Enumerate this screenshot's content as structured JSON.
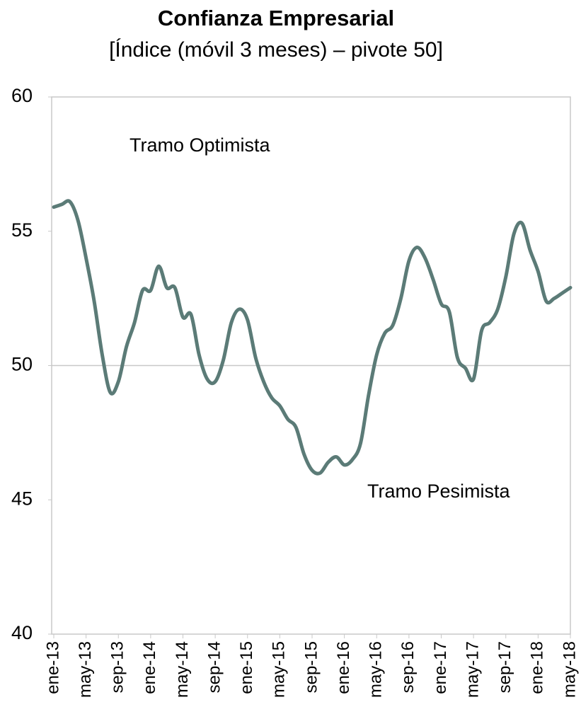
{
  "chart_data": {
    "type": "line",
    "title": "Confianza Empresarial",
    "subtitle": "[Índice (móvil 3 meses) – pivote 50]",
    "categories": [
      "ene-13",
      null,
      null,
      null,
      "may-13",
      null,
      null,
      null,
      "sep-13",
      null,
      null,
      null,
      "ene-14",
      null,
      null,
      null,
      "may-14",
      null,
      null,
      null,
      "sep-14",
      null,
      null,
      null,
      "ene-15",
      null,
      null,
      null,
      "may-15",
      null,
      null,
      null,
      "sep-15",
      null,
      null,
      null,
      "ene-16",
      null,
      null,
      null,
      "may-16",
      null,
      null,
      null,
      "sep-16",
      null,
      null,
      null,
      "ene-17",
      null,
      null,
      null,
      "may-17",
      null,
      null,
      null,
      "sep-17",
      null,
      null,
      null,
      "ene-18",
      null,
      null,
      null,
      "may-18"
    ],
    "series": [
      {
        "name": "Confianza Empresarial",
        "color": "#5b7b77",
        "values": [
          55.9,
          56.0,
          56.1,
          55.4,
          54.0,
          52.4,
          50.4,
          49.0,
          49.4,
          50.7,
          51.6,
          52.8,
          52.8,
          53.7,
          52.9,
          52.9,
          51.8,
          51.9,
          50.4,
          49.5,
          49.4,
          50.2,
          51.6,
          52.1,
          51.7,
          50.3,
          49.4,
          48.8,
          48.5,
          48.0,
          47.7,
          46.7,
          46.1,
          46.0,
          46.4,
          46.6,
          46.3,
          46.5,
          47.1,
          48.9,
          50.4,
          51.2,
          51.5,
          52.5,
          53.9,
          54.4,
          54.0,
          53.2,
          52.3,
          52.0,
          50.3,
          49.9,
          49.5,
          51.3,
          51.6,
          52.1,
          53.3,
          54.9,
          55.3,
          54.3,
          53.5,
          52.4,
          52.5,
          52.7,
          52.9
        ]
      }
    ],
    "ylim": [
      40,
      60
    ],
    "yticks": [
      40,
      45,
      50,
      55,
      60
    ],
    "reference_line": 50,
    "annotations": [
      "Tramo Optimista",
      "Tramo Pesimista"
    ],
    "grid": false,
    "title_color": "#6f8b86"
  }
}
